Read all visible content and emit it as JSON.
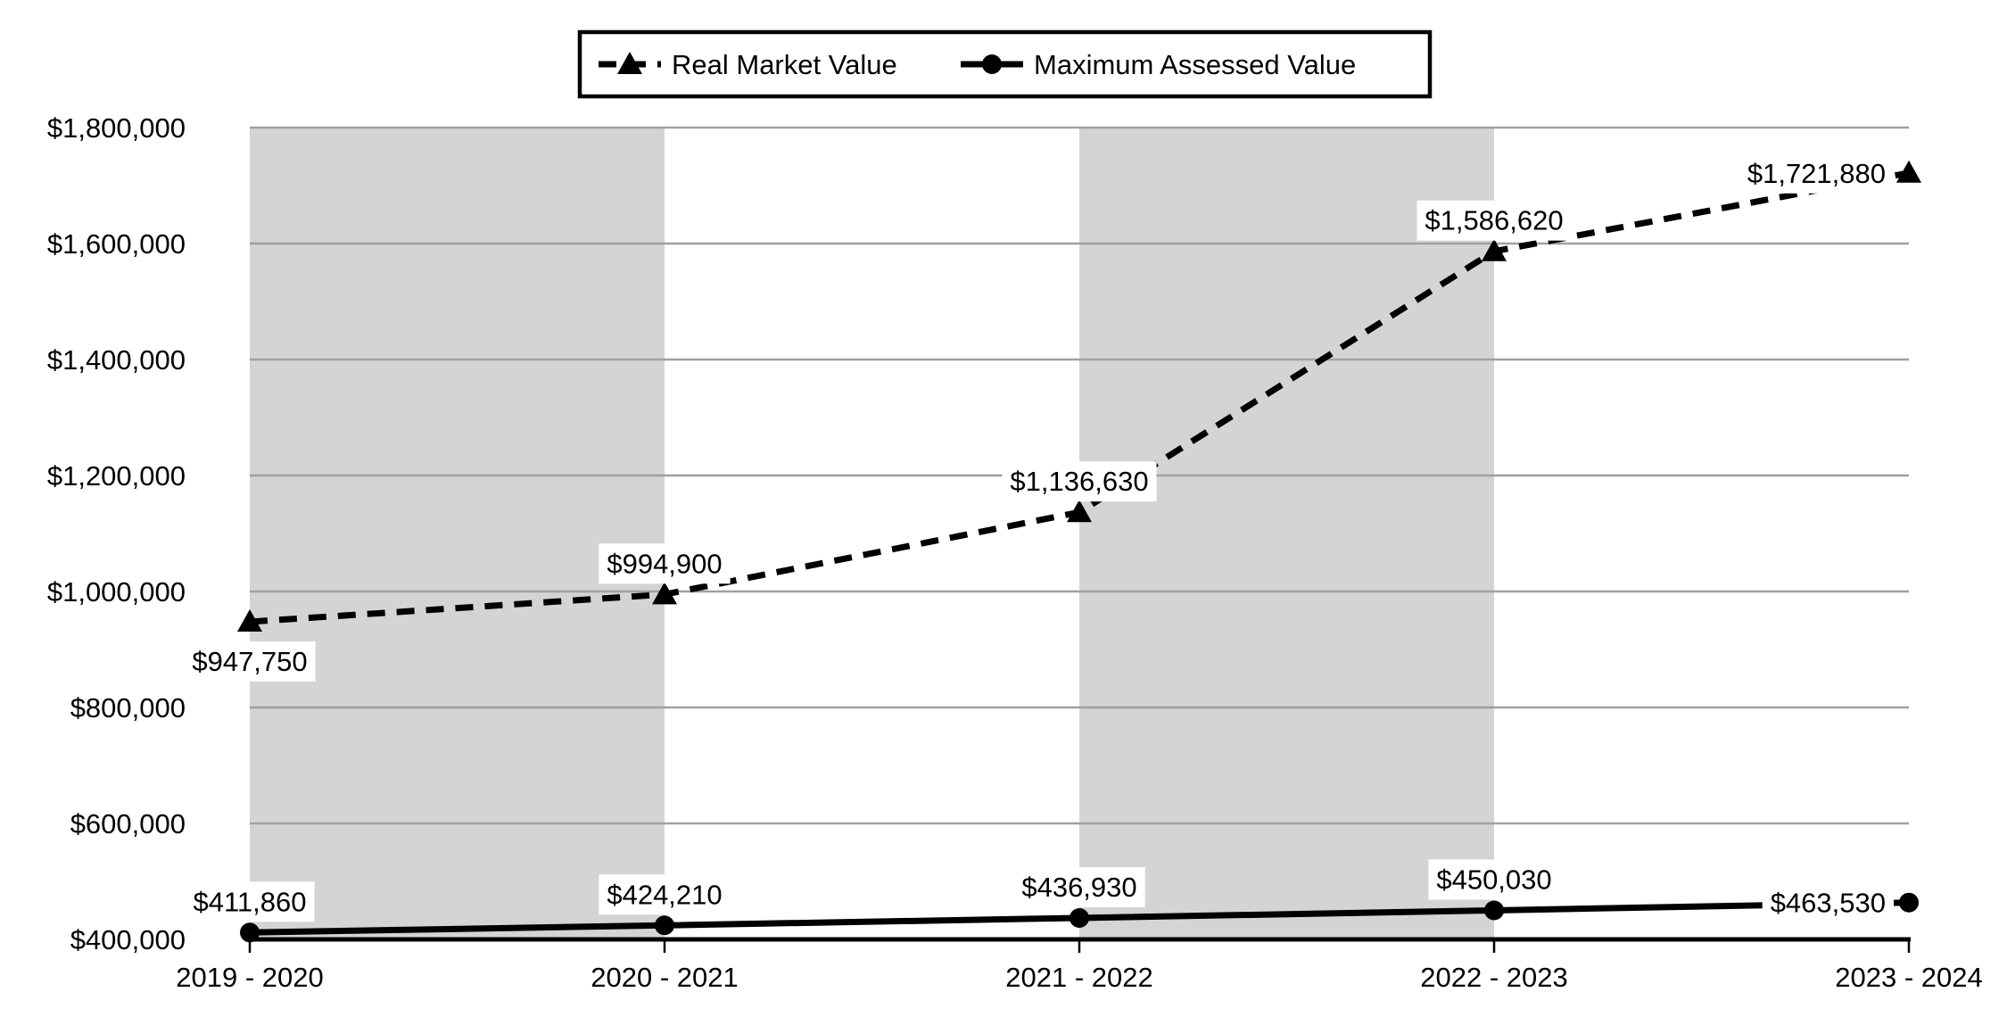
{
  "chart_data": {
    "type": "line",
    "title": "",
    "x_axis": {
      "categories": [
        "2019 - 2020",
        "2020 - 2021",
        "2021 - 2022",
        "2022 - 2023",
        "2023 - 2024"
      ]
    },
    "y_axis": {
      "min": 400000,
      "max": 1800000,
      "step": 200000,
      "tick_labels": [
        "$400,000",
        "$600,000",
        "$800,000",
        "$1,000,000",
        "$1,200,000",
        "$1,400,000",
        "$1,600,000",
        "$1,800,000"
      ]
    },
    "series": [
      {
        "name": "Real Market Value",
        "line_style": "dashed",
        "marker": "triangle",
        "values": [
          947750,
          994900,
          1136630,
          1586620,
          1721880
        ],
        "point_labels": [
          "$947,750",
          "$994,900",
          "$1,136,630",
          "$1,586,620",
          "$1,721,880"
        ],
        "label_positions": [
          "below",
          "above",
          "above",
          "above",
          "left"
        ]
      },
      {
        "name": "Maximum Assessed Value",
        "line_style": "solid",
        "marker": "circle",
        "values": [
          411860,
          424210,
          436930,
          450030,
          463530
        ],
        "point_labels": [
          "$411,860",
          "$424,210",
          "$436,930",
          "$450,030",
          "$463,530"
        ],
        "label_positions": [
          "above",
          "above",
          "above",
          "above",
          "left"
        ]
      }
    ],
    "legend": {
      "position": "top-center",
      "entries": [
        "Real Market Value",
        "Maximum Assessed Value"
      ]
    },
    "layout_hints": {
      "grid": true,
      "shaded_band_pairs": [
        [
          0,
          1
        ],
        [
          2,
          3
        ]
      ],
      "ylim": [
        400000,
        1800000
      ]
    },
    "colors": {
      "series": "#000000",
      "axis": "#000000",
      "gridline": "#a0a0a0",
      "band": "#d4d4d4",
      "background": "#ffffff",
      "label_background": "#ffffff"
    }
  }
}
